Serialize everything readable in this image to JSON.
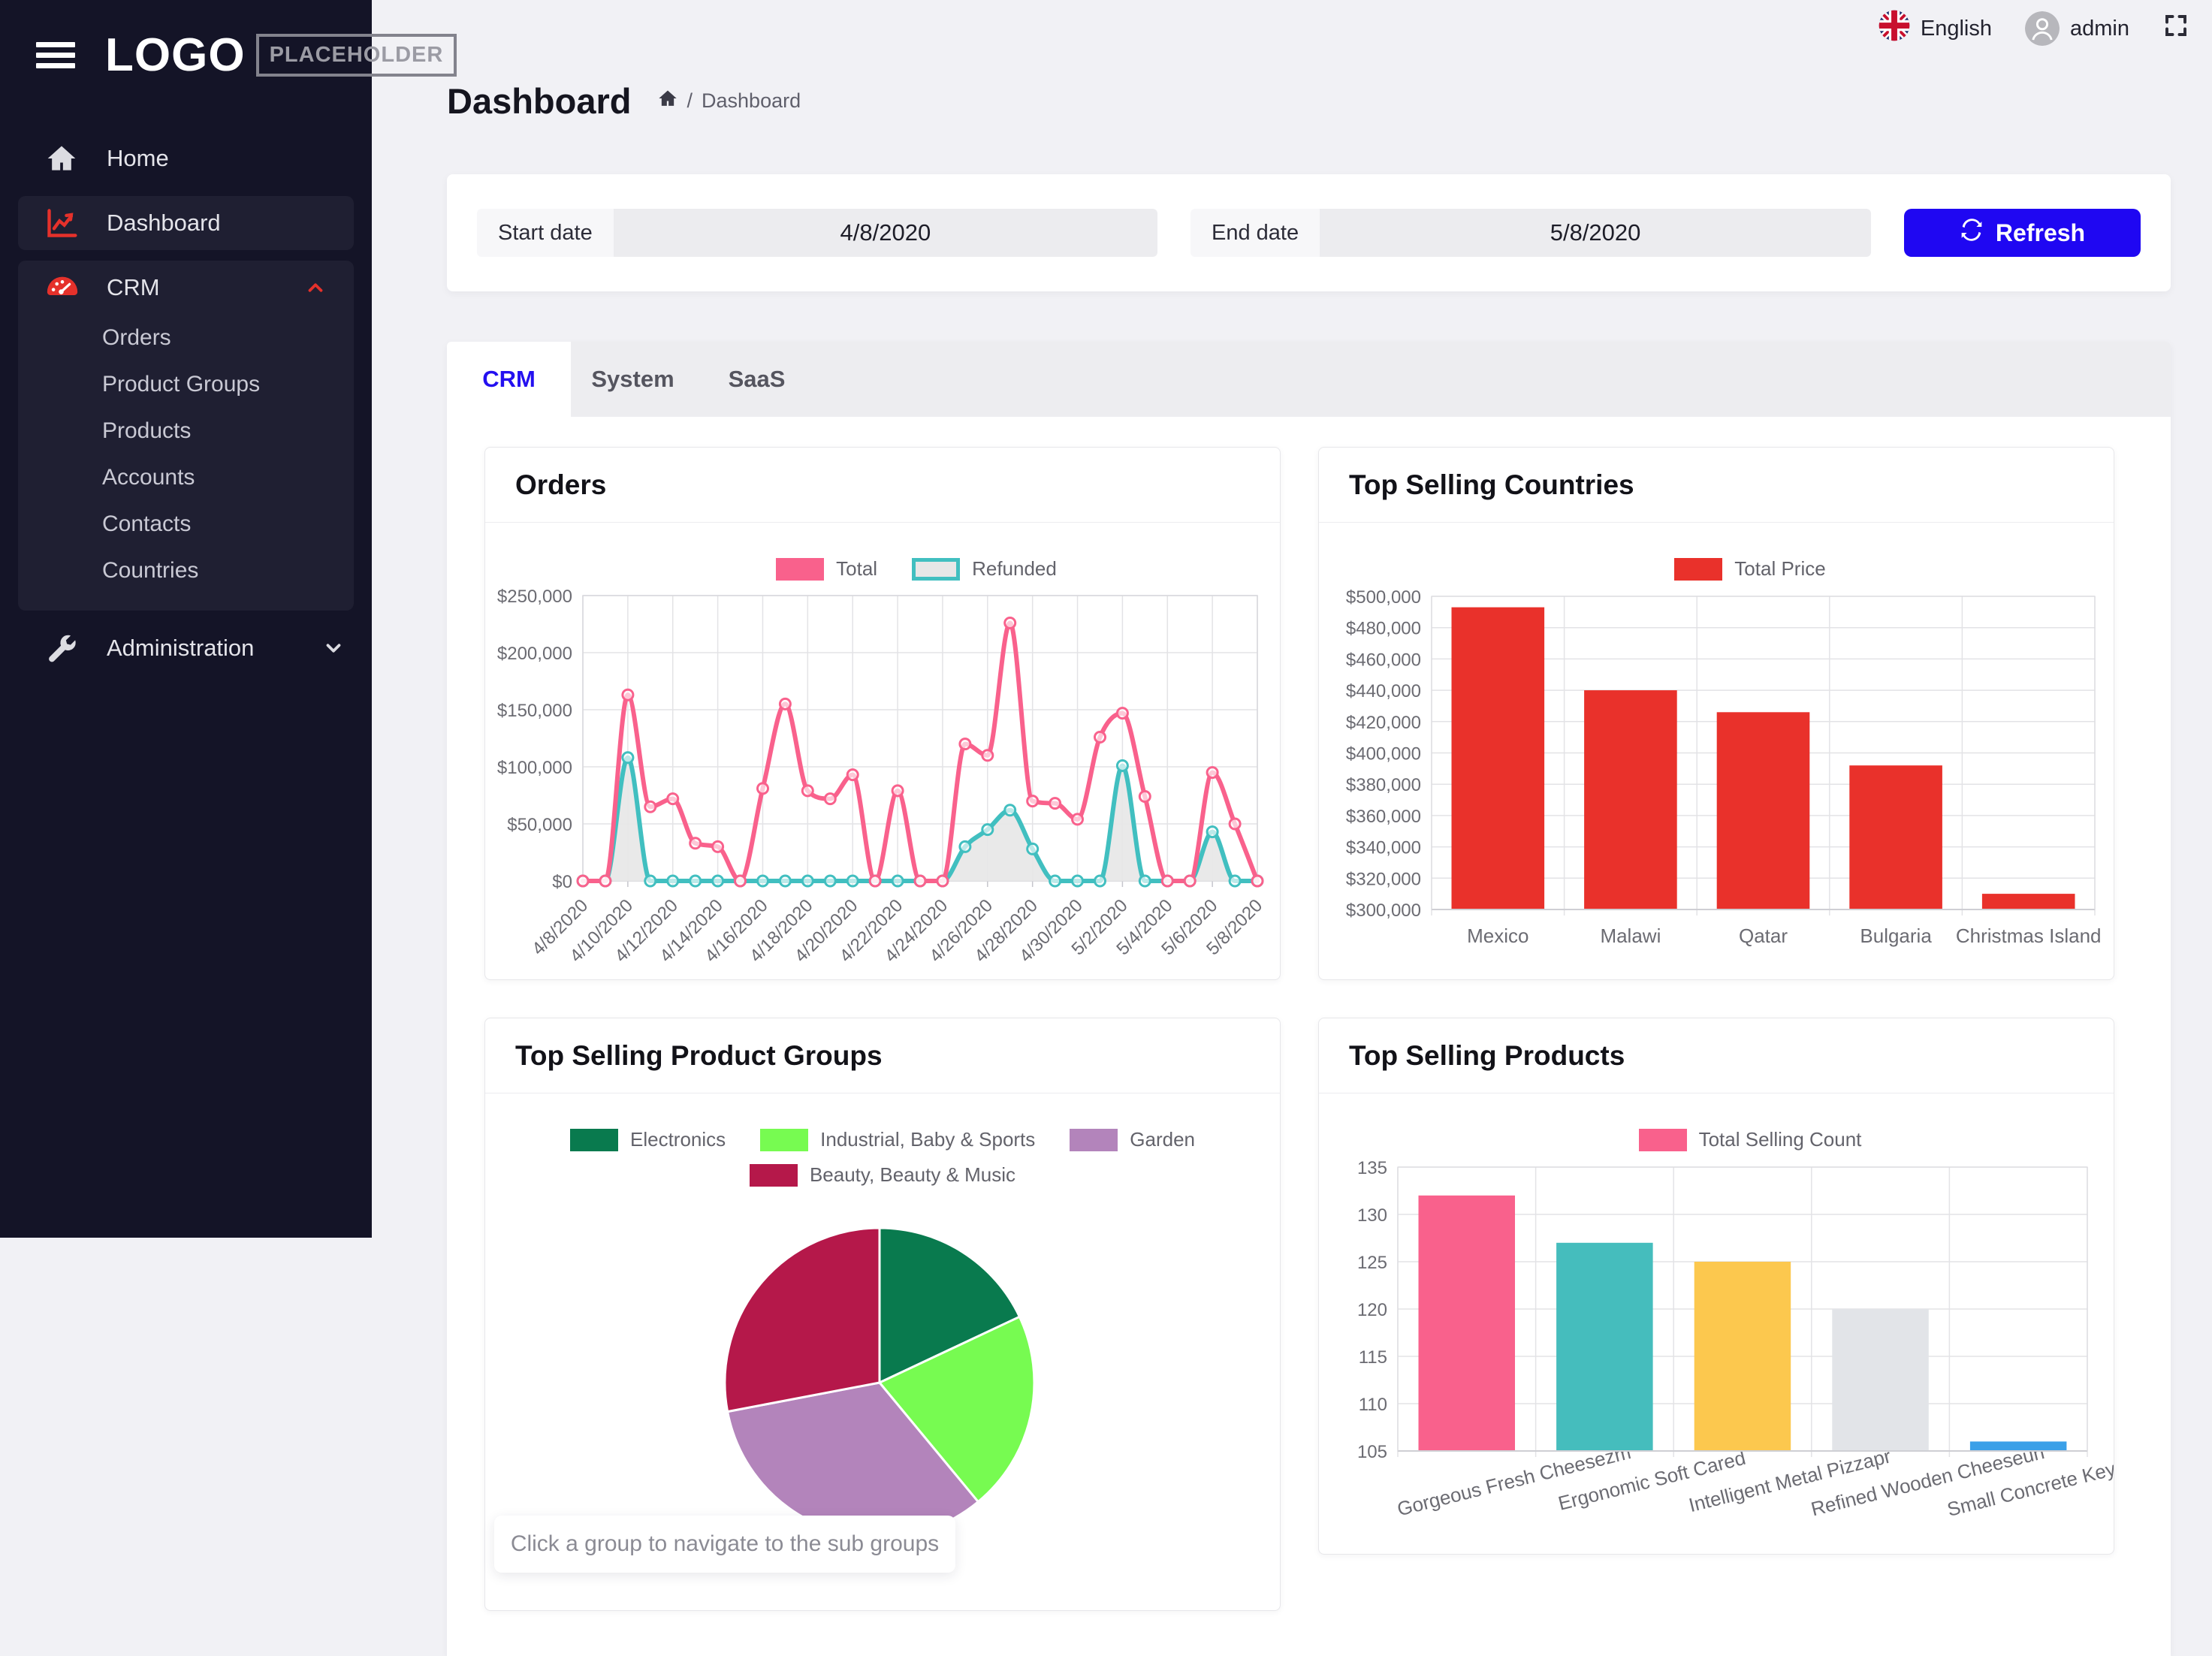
{
  "topbar": {
    "language": "English",
    "user": "admin"
  },
  "sidebar": {
    "logo_text": "LOGO",
    "logo_badge": "PLACEHOLDER",
    "home": "Home",
    "dashboard": "Dashboard",
    "crm": "CRM",
    "crm_items": [
      "Orders",
      "Product Groups",
      "Products",
      "Accounts",
      "Contacts",
      "Countries"
    ],
    "administration": "Administration"
  },
  "page": {
    "title": "Dashboard",
    "breadcrumb_separator": "/",
    "breadcrumb_current": "Dashboard"
  },
  "filters": {
    "start_label": "Start date",
    "start_value": "4/8/2020",
    "end_label": "End date",
    "end_value": "5/8/2020",
    "refresh_label": "Refresh"
  },
  "tabs": {
    "crm": "CRM",
    "system": "System",
    "saas": "SaaS"
  },
  "colors": {
    "accent_blue": "#1f07f2",
    "brand_red": "#e5312b",
    "sidebar_bg": "#141427",
    "pink": "#f9618c",
    "teal": "#41bfc0",
    "bar_red": "#e9312b"
  },
  "chart_data": [
    {
      "type": "line",
      "title": "Orders",
      "x": [
        "4/8/2020",
        "4/9/2020",
        "4/10/2020",
        "4/11/2020",
        "4/12/2020",
        "4/13/2020",
        "4/14/2020",
        "4/15/2020",
        "4/16/2020",
        "4/17/2020",
        "4/18/2020",
        "4/19/2020",
        "4/20/2020",
        "4/21/2020",
        "4/22/2020",
        "4/23/2020",
        "4/24/2020",
        "4/25/2020",
        "4/26/2020",
        "4/27/2020",
        "4/28/2020",
        "4/29/2020",
        "4/30/2020",
        "5/1/2020",
        "5/2/2020",
        "5/3/2020",
        "5/4/2020",
        "5/5/2020",
        "5/6/2020",
        "5/7/2020",
        "5/8/2020"
      ],
      "series": [
        {
          "name": "Total",
          "color": "#f9618c",
          "values": [
            0,
            0,
            163000,
            65000,
            72000,
            33000,
            30000,
            0,
            81000,
            155000,
            79000,
            72000,
            93000,
            0,
            79000,
            0,
            0,
            120000,
            110000,
            226000,
            70000,
            68000,
            54000,
            126000,
            147000,
            74000,
            0,
            0,
            95000,
            50000,
            0
          ]
        },
        {
          "name": "Refunded",
          "color": "#41bfc0",
          "fill": "#e7e7e7",
          "values": [
            0,
            0,
            108000,
            0,
            0,
            0,
            0,
            0,
            0,
            0,
            0,
            0,
            0,
            0,
            0,
            0,
            0,
            30000,
            45000,
            62000,
            28000,
            0,
            0,
            0,
            101000,
            0,
            0,
            0,
            43000,
            0,
            0
          ]
        }
      ],
      "ylim": [
        0,
        250000
      ],
      "ystep": 50000,
      "yformat": "$",
      "xtick_every": 2,
      "grid": true,
      "legend_position": "top"
    },
    {
      "type": "bar",
      "title": "Top Selling Countries",
      "legend": "Total Price",
      "categories": [
        "Mexico",
        "Malawi",
        "Qatar",
        "Bulgaria",
        "Christmas Island"
      ],
      "values": [
        493000,
        440000,
        426000,
        392000,
        310000
      ],
      "color": "#e9312b",
      "ylim": [
        300000,
        500000
      ],
      "ystep": 20000,
      "yformat": "$",
      "grid": true,
      "legend_position": "top"
    },
    {
      "type": "pie",
      "title": "Top Selling Product Groups",
      "labels": [
        "Electronics",
        "Industrial, Baby & Sports",
        "Garden",
        "Beauty, Beauty & Music"
      ],
      "values": [
        18,
        21,
        33,
        28
      ],
      "colors": [
        "#097a4e",
        "#77fb51",
        "#b384bb",
        "#b5184a"
      ],
      "note": "Click a group to navigate to the sub groups",
      "legend_position": "top"
    },
    {
      "type": "bar",
      "title": "Top Selling Products",
      "legend": "Total Selling Count",
      "legend_color": "#f9618c",
      "categories": [
        "Gorgeous Fresh Cheesezm",
        "Ergonomic Soft Cared",
        "Intelligent Metal Pizzapr",
        "Refined Wooden Cheeseuh",
        "Small Concrete Keyboardsp"
      ],
      "values": [
        132,
        127,
        125,
        120,
        106
      ],
      "colors": [
        "#f9618c",
        "#45bdbd",
        "#fcc84e",
        "#e2e4e8",
        "#3ba0e8"
      ],
      "ylim": [
        105,
        135
      ],
      "ystep": 5,
      "yformat": "",
      "rotate_labels": true,
      "grid": true,
      "legend_position": "top"
    }
  ]
}
